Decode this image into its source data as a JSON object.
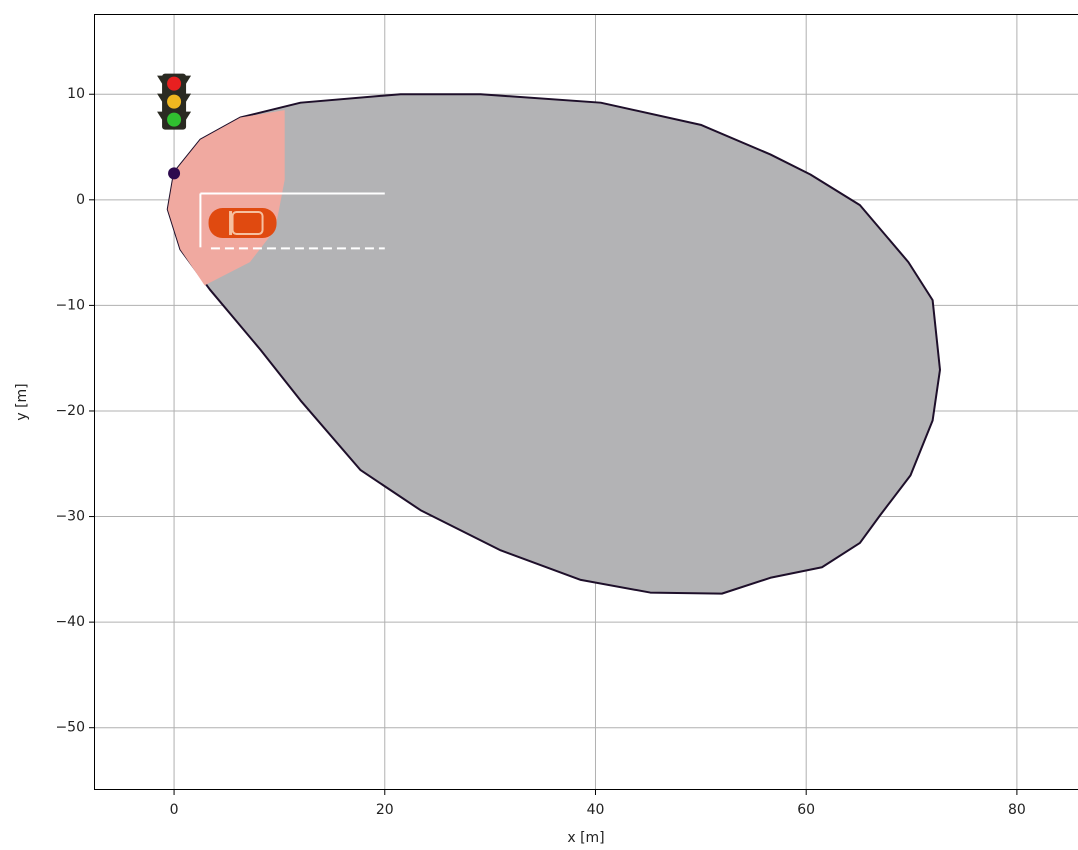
{
  "chart_data": {
    "type": "area",
    "xlabel": "x [m]",
    "ylabel": "y [m]",
    "xlim": [
      -7.6,
      85.8
    ],
    "ylim": [
      -55.9,
      17.6
    ],
    "xticks": [
      0,
      20,
      40,
      60,
      80
    ],
    "yticks": [
      10,
      0,
      {
        "value": -10,
        "label": "−10"
      },
      {
        "value": -20,
        "label": "−20"
      },
      {
        "value": -30,
        "label": "−30"
      },
      {
        "value": -40,
        "label": "−40"
      },
      {
        "value": -50,
        "label": "−50"
      }
    ],
    "grid": true,
    "polygons": [
      {
        "color": "#b3b3b5",
        "edge": "#1e0f2a",
        "x": [
          0,
          -0.6,
          0.6,
          3.4,
          8.2,
          12,
          17.7,
          23.4,
          31,
          38.6,
          45.2,
          52,
          56.6,
          61.5,
          65.1,
          67,
          69.9,
          72,
          72.7,
          72,
          69.7,
          65.1,
          60.4,
          56.6,
          50,
          40.5,
          29.1,
          21.5,
          12,
          6.3,
          2.5
        ],
        "y": [
          2.6,
          -0.9,
          -4.7,
          -8.5,
          -14.2,
          -19,
          -25.6,
          -29.4,
          -33.2,
          -36,
          -37.2,
          -37.3,
          -35.8,
          -34.8,
          -32.5,
          -29.9,
          -26.1,
          -20.9,
          -16.1,
          -9.5,
          -5.9,
          -0.5,
          2.4,
          4.3,
          7.1,
          9.2,
          10,
          10,
          9.2,
          7.8,
          5.7
        ]
      },
      {
        "color": "#f0a9a0",
        "x": [
          10.5,
          10.5,
          9.6,
          7.2,
          2.9,
          0.6,
          -0.6,
          0,
          2.5,
          6.3
        ],
        "y": [
          8.5,
          1.9,
          -2.8,
          -5.9,
          -8.1,
          -4.7,
          -0.9,
          2.6,
          5.7,
          7.8
        ]
      }
    ],
    "lines": [
      {
        "x": [
          2.5,
          20
        ],
        "y": [
          0.6,
          0.6
        ],
        "dashed": false
      },
      {
        "x": [
          2.5,
          2.5
        ],
        "y": [
          0.6,
          -4.5
        ],
        "dashed": false
      },
      {
        "x": [
          3.5,
          20
        ],
        "y": [
          -4.6,
          -4.6
        ],
        "dashed": true
      }
    ],
    "point": {
      "x": 0,
      "y": 2.5,
      "color": "#2d0a4e"
    },
    "vehicle": {
      "x": 6.5,
      "y": -2.2,
      "color": "#e04a10"
    },
    "traffic_light": {
      "x": 0,
      "y": 9.3
    }
  }
}
